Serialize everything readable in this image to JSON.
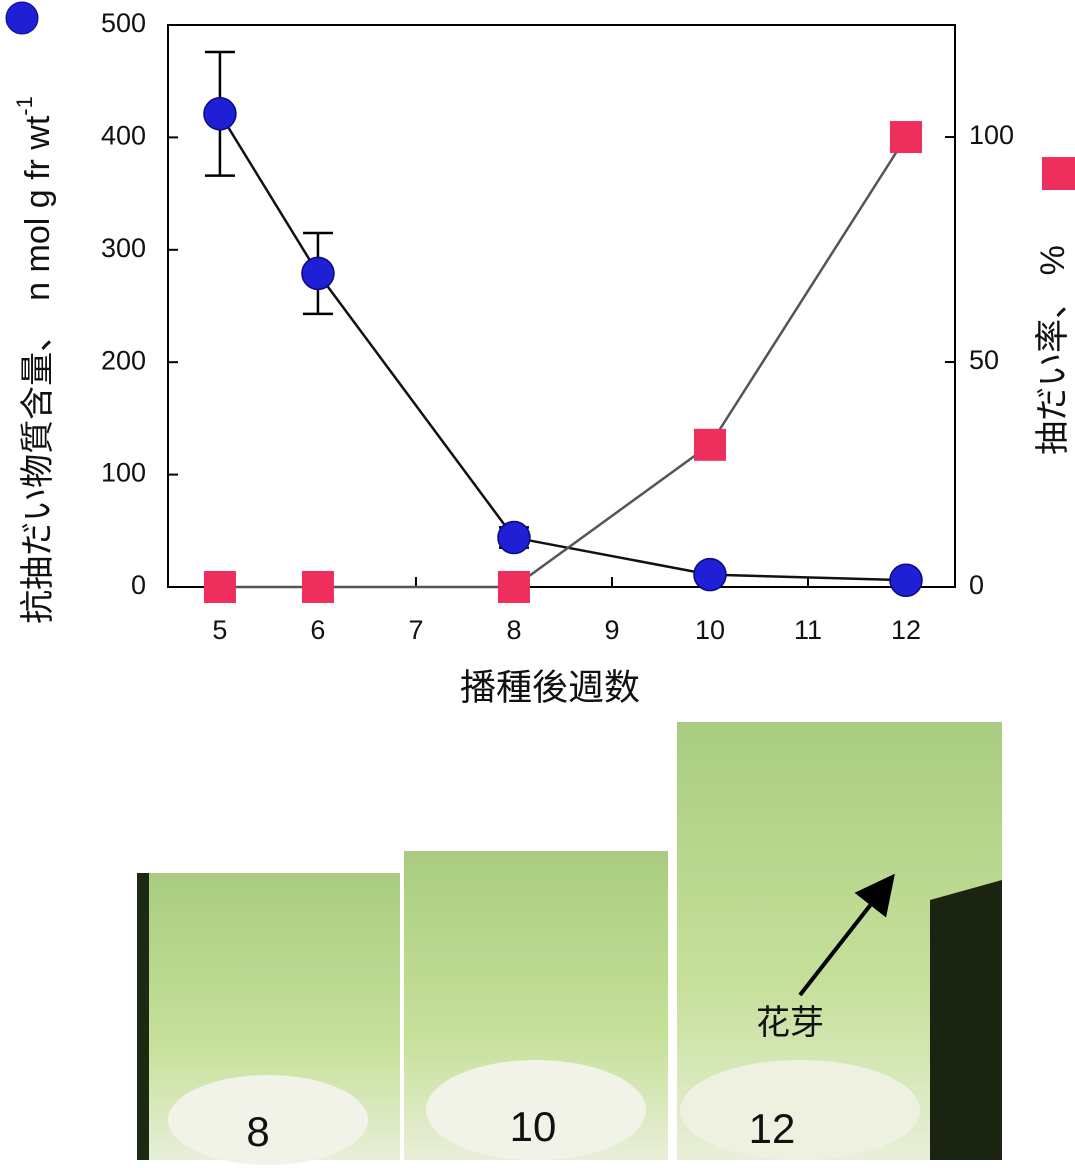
{
  "chart_data": {
    "type": "line",
    "x_label": "播種後週数",
    "y_label": "抗抽だい物質含量、　n mol g fr wt",
    "y_label_sup": "-1",
    "y2_label": "抽だい率、 %",
    "x": [
      5,
      6,
      8,
      10,
      12
    ],
    "series": [
      {
        "color": "#1f1fd6",
        "marker": "circle",
        "values": [
          421,
          279,
          44,
          11,
          6
        ],
        "errors": [
          55,
          36,
          9,
          4,
          3
        ]
      },
      {
        "color": "#ee2e5c",
        "marker": "square",
        "axis": "y2",
        "values": [
          0,
          0,
          0,
          31.6,
          100
        ]
      }
    ],
    "xlim": [
      4.47,
      12.5
    ],
    "xticks": [
      5,
      6,
      7,
      8,
      9,
      10,
      11,
      12
    ],
    "ylim": [
      0,
      500
    ],
    "yticks": [
      0,
      100,
      200,
      300,
      400,
      500
    ],
    "y2lim": [
      0,
      124.9
    ],
    "y2ticks": [
      0,
      50,
      100
    ]
  },
  "photos": [
    {
      "label": "8"
    },
    {
      "label": "10"
    },
    {
      "label": "12"
    }
  ],
  "annotation": "花芽"
}
